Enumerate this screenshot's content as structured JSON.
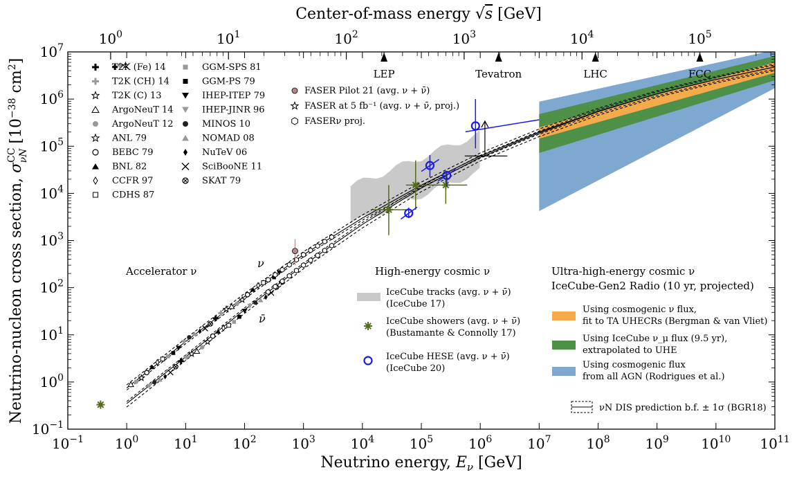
{
  "colors": {
    "agn": "#7ea8cf",
    "icecube_numu": "#4f9049",
    "ta_uhecr": "#f5ab4c",
    "icecube_tracks": "#c9c9c9",
    "icecube_showers": "#556b1e",
    "icecube_hese": "#1a1af0",
    "faser_pilot": "#b28a8a"
  },
  "chart_data": {
    "type": "scatter",
    "x_axis": {
      "label": "Neutrino energy, E_ν [GeV]",
      "scale": "log",
      "range": [
        0.1,
        100000000000.0
      ],
      "ticks": [
        {
          "value": 0.1,
          "base": "10",
          "exp": "−1"
        },
        {
          "value": 1,
          "base": "10",
          "exp": "0"
        },
        {
          "value": 10,
          "base": "10",
          "exp": "1"
        },
        {
          "value": 100,
          "base": "10",
          "exp": "2"
        },
        {
          "value": 1000,
          "base": "10",
          "exp": "3"
        },
        {
          "value": 10000,
          "base": "10",
          "exp": "4"
        },
        {
          "value": 100000,
          "base": "10",
          "exp": "5"
        },
        {
          "value": 1000000,
          "base": "10",
          "exp": "6"
        },
        {
          "value": 10000000,
          "base": "10",
          "exp": "7"
        },
        {
          "value": 100000000,
          "base": "10",
          "exp": "8"
        },
        {
          "value": 1000000000,
          "base": "10",
          "exp": "9"
        },
        {
          "value": 10000000000,
          "base": "10",
          "exp": "10"
        },
        {
          "value": 100000000000,
          "base": "10",
          "exp": "11"
        }
      ]
    },
    "y_axis": {
      "label": "Neutrino-nucleon cross section, σ^CC_νN [10^−38 cm²]",
      "scale": "log",
      "range": [
        0.1,
        10000000.0
      ],
      "ticks": [
        {
          "value": 0.1,
          "base": "10",
          "exp": "−1"
        },
        {
          "value": 1,
          "base": "10",
          "exp": "0"
        },
        {
          "value": 10,
          "base": "10",
          "exp": "1"
        },
        {
          "value": 100,
          "base": "10",
          "exp": "2"
        },
        {
          "value": 1000,
          "base": "10",
          "exp": "3"
        },
        {
          "value": 10000,
          "base": "10",
          "exp": "4"
        },
        {
          "value": 100000,
          "base": "10",
          "exp": "5"
        },
        {
          "value": 1000000,
          "base": "10",
          "exp": "6"
        },
        {
          "value": 10000000,
          "base": "10",
          "exp": "7"
        }
      ]
    },
    "top_axis": {
      "label": "Center-of-mass energy √s [GeV]",
      "ticks": [
        {
          "value": 1,
          "base": "10",
          "exp": "0"
        },
        {
          "value": 10,
          "base": "10",
          "exp": "1"
        },
        {
          "value": 100,
          "base": "10",
          "exp": "2"
        },
        {
          "value": 1000,
          "base": "10",
          "exp": "3"
        },
        {
          "value": 10000,
          "base": "10",
          "exp": "4"
        },
        {
          "value": 100000,
          "base": "10",
          "exp": "5"
        }
      ],
      "colliders": [
        {
          "name": "LEP",
          "sqrt_s": 209
        },
        {
          "name": "Tevatron",
          "sqrt_s": 1960
        },
        {
          "name": "LHC",
          "sqrt_s": 13000
        },
        {
          "name": "FCC",
          "sqrt_s": 100000
        }
      ]
    },
    "accelerator_legend": [
      {
        "label": "T2K (Fe) 14",
        "marker": "plus-bold"
      },
      {
        "label": "T2K (CH) 14",
        "marker": "plus-gray"
      },
      {
        "label": "T2K (C) 13",
        "marker": "star-open"
      },
      {
        "label": "ArgoNeuT 14",
        "marker": "triangle-open"
      },
      {
        "label": "ArgoNeuT 12",
        "marker": "circle-gray"
      },
      {
        "label": "ANL 79",
        "marker": "star-open"
      },
      {
        "label": "BEBC 79",
        "marker": "circle-open"
      },
      {
        "label": "BNL 82",
        "marker": "triangle-filled"
      },
      {
        "label": "CCFR 97",
        "marker": "diamond-open"
      },
      {
        "label": "CDHS 87",
        "marker": "square-open"
      },
      {
        "label": "GGM-SPS 81",
        "marker": "square-gray"
      },
      {
        "label": "GGM-PS 79",
        "marker": "square-filled"
      },
      {
        "label": "IHEP-ITEP 79",
        "marker": "triangle-down-filled"
      },
      {
        "label": "IHEP-JINR 96",
        "marker": "triangle-down-gray"
      },
      {
        "label": "MINOS 10",
        "marker": "circle-filled"
      },
      {
        "label": "NOMAD 08",
        "marker": "triangle-gray"
      },
      {
        "label": "NuTeV 06",
        "marker": "diamond-filled"
      },
      {
        "label": "SciBooNE 11",
        "marker": "cross"
      },
      {
        "label": "SKAT 79",
        "marker": "circle-cross"
      }
    ],
    "faser_legend": [
      {
        "label": "FASER Pilot 21 (avg. ν + ν̄)",
        "marker": "circle-pink"
      },
      {
        "label": "FASER at 5 fb⁻¹ (avg. ν + ν̄, proj.)",
        "marker": "star-open"
      },
      {
        "label": "FASERν proj.",
        "marker": "hexagon-open"
      }
    ],
    "region_labels": {
      "accelerator": "Accelerator ν",
      "nu": "ν",
      "nubar": "ν̄",
      "high_energy_title": "High-energy cosmic ν",
      "uhe_title_1": "Ultra-high-energy cosmic ν",
      "uhe_title_2": "IceCube-Gen2 Radio (10 yr, projected)"
    },
    "high_energy_legend": [
      {
        "line1": "IceCube tracks (avg. ν + ν̄)",
        "line2": "(IceCube 17)"
      },
      {
        "line1": "IceCube showers (avg. ν + ν̄)",
        "line2": "(Bustamante & Connolly 17)"
      },
      {
        "line1": "IceCube HESE (avg. ν + ν̄)",
        "line2": "(IceCube 20)"
      }
    ],
    "uhe_legend": [
      {
        "line1": "Using cosmogenic ν flux,",
        "line2": "fit to TA UHECRs (Bergman & van Vliet)"
      },
      {
        "line1": "Using IceCube ν_μ flux (9.5 yr),",
        "line2": "extrapolated to UHE"
      },
      {
        "line1": "Using cosmogenic flux",
        "line2": "from all AGN (Rodrigues et al.)"
      }
    ],
    "dis_label": "νN DIS prediction b.f. ± 1σ (BGR18)",
    "dis_prediction_nu": [
      [
        1,
        0.75
      ],
      [
        10,
        7.2
      ],
      [
        100,
        65
      ],
      [
        1000,
        500
      ],
      [
        10000,
        3000
      ],
      [
        100000,
        15000
      ],
      [
        1000000,
        62000
      ],
      [
        10000000,
        200000
      ],
      [
        100000000,
        550000
      ],
      [
        1000000000,
        1300000
      ],
      [
        10000000000,
        2600000
      ],
      [
        100000000000,
        4800000
      ]
    ],
    "dis_prediction_nubar": [
      [
        1,
        0.35
      ],
      [
        10,
        3.4
      ],
      [
        100,
        34
      ],
      [
        1000,
        300
      ],
      [
        10000,
        2200
      ],
      [
        100000,
        13000
      ],
      [
        1000000,
        58000
      ],
      [
        10000000,
        190000
      ],
      [
        100000000,
        540000
      ],
      [
        1000000000,
        1300000
      ],
      [
        10000000000,
        2600000
      ],
      [
        100000000000,
        4800000
      ]
    ],
    "dis_band_relative": 0.1,
    "icecube_hese": [
      {
        "e": 61000,
        "sigma": 3800,
        "e_lo": 45000,
        "e_hi": 85000,
        "s_lo": 3000,
        "s_hi": 5000
      },
      {
        "e": 140000,
        "sigma": 39000,
        "e_lo": 100000,
        "e_hi": 200000,
        "s_lo": 22000,
        "s_hi": 65000
      },
      {
        "e": 270000,
        "sigma": 24000,
        "e_lo": 190000,
        "e_hi": 380000,
        "s_lo": 14000,
        "s_hi": 30000
      },
      {
        "e": 830000,
        "sigma": 270000,
        "e_lo": 560000,
        "e_hi": 10000000,
        "s_lo": 90000,
        "s_hi": 1000000
      }
    ],
    "icecube_showers": [
      {
        "e": 28000,
        "sigma": 4500,
        "e_lo": 15000,
        "e_hi": 55000,
        "s_lo": 1300,
        "s_hi": 15000
      },
      {
        "e": 80000,
        "sigma": 15000,
        "e_lo": 55000,
        "e_hi": 100000,
        "s_lo": 4500,
        "s_hi": 50000
      },
      {
        "e": 260000,
        "sigma": 15000,
        "e_lo": 100000,
        "e_hi": 600000,
        "s_lo": 6000,
        "s_hi": 30000
      }
    ],
    "icecube_tracks_band": {
      "e_min": 6300,
      "e_max": 980000
    },
    "uhe_band_emin": 10000000,
    "uhe_band_emax": 100000000000,
    "uhe_bands": {
      "agn": {
        "lo_start": 4200,
        "lo_end": 1700000,
        "hi_start": 880000,
        "hi_end": 11000000
      },
      "icecube_numu": {
        "lo_start": 72000,
        "lo_end": 2500000,
        "hi_start": 480000,
        "hi_end": 8200000
      },
      "ta_uhecr": {
        "lo_start": 145000,
        "lo_end": 3600000,
        "hi_start": 250000,
        "hi_end": 6000000
      }
    },
    "faser_pilot": [
      {
        "e": 720,
        "sigma": 600
      }
    ],
    "upper_limit_arrow": {
      "e": 1200000,
      "sigma_from": 62000,
      "sigma_to": 340000
    }
  }
}
